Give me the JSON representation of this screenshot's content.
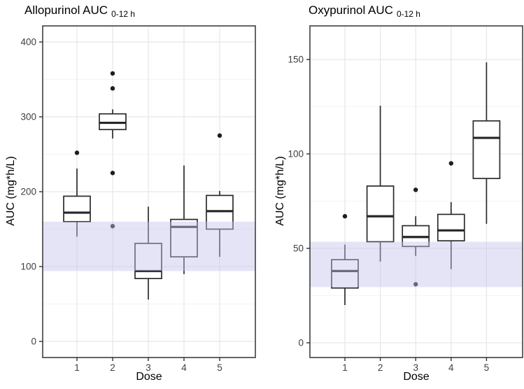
{
  "chart_data": [
    {
      "type": "box",
      "title_main": "Allopurinol AUC",
      "title_sub": "0-12 h",
      "xlabel": "Dose",
      "ylabel": "AUC (mg*h/L)",
      "x_ticks": [
        "1",
        "2",
        "3",
        "4",
        "5"
      ],
      "y_ticks": [
        0,
        100,
        200,
        300,
        400
      ],
      "y_minor": [
        50,
        150,
        250,
        350
      ],
      "ylim": [
        -21.5,
        421.5
      ],
      "grid": "on",
      "reference_band": {
        "low": 94,
        "high": 160
      },
      "boxes": [
        {
          "dose": "1",
          "whisker_low": 140,
          "q1": 160,
          "median": 172,
          "q3": 194,
          "whisker_high": 231,
          "outliers": [
            252
          ]
        },
        {
          "dose": "2",
          "whisker_low": 271,
          "q1": 283,
          "median": 292,
          "q3": 304,
          "whisker_high": 310,
          "outliers": [
            358,
            338,
            225,
            154
          ]
        },
        {
          "dose": "3",
          "whisker_low": 56,
          "q1": 84,
          "median": 94,
          "q3": 131,
          "whisker_high": 180,
          "outliers": []
        },
        {
          "dose": "4",
          "whisker_low": 90,
          "q1": 113,
          "median": 153,
          "q3": 163,
          "whisker_high": 235,
          "outliers": []
        },
        {
          "dose": "5",
          "whisker_low": 113,
          "q1": 150,
          "median": 174,
          "q3": 195,
          "whisker_high": 201,
          "outliers": [
            275
          ]
        }
      ]
    },
    {
      "type": "box",
      "title_main": "Oxypurinol AUC",
      "title_sub": "0-12 h",
      "xlabel": "Dose",
      "ylabel": "AUC (mg*h/L)",
      "x_ticks": [
        "1",
        "2",
        "3",
        "4",
        "5"
      ],
      "y_ticks": [
        0,
        50,
        100,
        150
      ],
      "y_minor": [
        25,
        75,
        125
      ],
      "ylim": [
        -7.8,
        167.8
      ],
      "grid": "on",
      "reference_band": {
        "low": 29.5,
        "high": 53.5
      },
      "boxes": [
        {
          "dose": "1",
          "whisker_low": 20,
          "q1": 29,
          "median": 38,
          "q3": 44,
          "whisker_high": 52,
          "outliers": [
            67
          ]
        },
        {
          "dose": "2",
          "whisker_low": 43,
          "q1": 53.5,
          "median": 67,
          "q3": 83,
          "whisker_high": 125.5,
          "outliers": []
        },
        {
          "dose": "3",
          "whisker_low": 46,
          "q1": 51,
          "median": 56,
          "q3": 62,
          "whisker_high": 67,
          "outliers": [
            81,
            31
          ]
        },
        {
          "dose": "4",
          "whisker_low": 39,
          "q1": 54,
          "median": 59.5,
          "q3": 68,
          "whisker_high": 74.5,
          "outliers": [
            95
          ]
        },
        {
          "dose": "5",
          "whisker_low": 63,
          "q1": 87,
          "median": 108.5,
          "q3": 117.5,
          "whisker_high": 148.5,
          "outliers": []
        }
      ]
    }
  ],
  "colors": {
    "background": "#ffffff",
    "band_fill": "#c3c3ec",
    "band_alpha": "0.45",
    "box_stroke": "#2b2b2b",
    "box_fill": "#ffffff",
    "median_stroke": "#262626",
    "outlier_fill": "#1d1d28",
    "grid_major": "#e6e6e6",
    "grid_minor": "#f3f3f3",
    "panel_border": "#3f3f3f",
    "tick_mark": "#333333",
    "tick_text": "#404040",
    "title_text": "#000000"
  }
}
